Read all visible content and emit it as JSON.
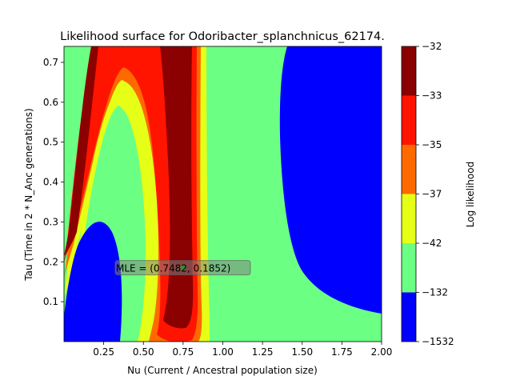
{
  "chart_data": {
    "type": "contour",
    "title": "Likelihood surface for Odoribacter_splanchnicus_62174.",
    "xlabel": "Nu (Current / Ancestral population size)",
    "ylabel": "Tau (Time in 2 * N_Anc generations)",
    "xlim": [
      0.0,
      2.0
    ],
    "ylim": [
      0.0,
      0.74
    ],
    "x_ticks": [
      "0.25",
      "0.50",
      "0.75",
      "1.00",
      "1.25",
      "1.50",
      "1.75",
      "2.00"
    ],
    "y_ticks": [
      "0.1",
      "0.2",
      "0.3",
      "0.4",
      "0.5",
      "0.6",
      "0.7"
    ],
    "mle": {
      "nu": 0.7482,
      "tau": 0.1852,
      "label": "MLE = (0.7482, 0.1852)"
    },
    "colorbar": {
      "label": "Log likelihood",
      "levels": [
        "-1532",
        "-132",
        "-42",
        "-37",
        "-35",
        "-33",
        "-32"
      ],
      "bands": [
        {
          "range": [
            -1532,
            -132
          ],
          "color": "#0000ff"
        },
        {
          "range": [
            -132,
            -42
          ],
          "color": "#6bff84"
        },
        {
          "range": [
            -42,
            -37
          ],
          "color": "#e6ff17"
        },
        {
          "range": [
            -37,
            -35
          ],
          "color": "#ff6a00"
        },
        {
          "range": [
            -35,
            -33
          ],
          "color": "#ff1400"
        },
        {
          "range": [
            -33,
            -32
          ],
          "color": "#8b0000"
        }
      ]
    }
  }
}
